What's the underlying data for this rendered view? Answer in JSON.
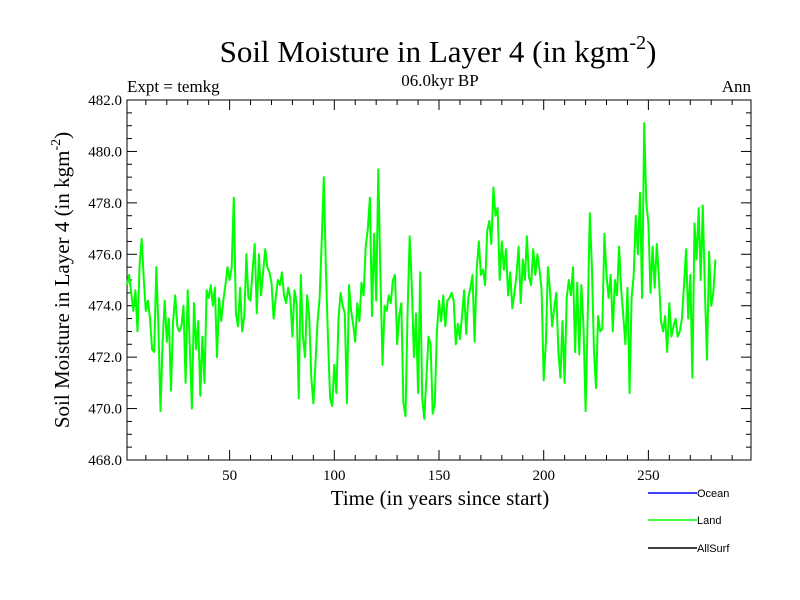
{
  "chart_data": {
    "type": "line",
    "title_main": "Soil Moisture in Layer 4 (in kgm",
    "title_sup": "-2",
    "title_end": ")",
    "subtitle_left": "Expt = temkg",
    "subtitle_center": "06.0kyr BP",
    "subtitle_right": "Ann",
    "xlabel": "Time (in years since start)",
    "ylabel_main": "Soil Moisture in Layer 4 (in kgm",
    "ylabel_sup": "-2",
    "ylabel_end": ")",
    "xlim": [
      1,
      299
    ],
    "ylim": [
      468,
      482
    ],
    "xticks": [
      50,
      100,
      150,
      200,
      250
    ],
    "xtick_labels": [
      "50",
      "100",
      "150",
      "200",
      "250"
    ],
    "yticks": [
      468,
      470,
      472,
      474,
      476,
      478,
      480,
      482
    ],
    "ytick_labels": [
      "468.0",
      "470.0",
      "472.0",
      "474.0",
      "476.0",
      "478.0",
      "480.0",
      "482.0"
    ],
    "legend": [
      {
        "name": "Ocean",
        "color": "#0000ff"
      },
      {
        "name": "Land",
        "color": "#00ff00"
      },
      {
        "name": "AllSurf",
        "color": "#000000"
      }
    ],
    "series": [
      {
        "name": "Land",
        "color": "#00ff00",
        "x_start": 1,
        "x_step": 1,
        "values": [
          474.8,
          475.2,
          474.5,
          473.8,
          474.6,
          473.0,
          475.6,
          476.6,
          475.0,
          473.8,
          474.2,
          473.5,
          472.3,
          472.2,
          475.5,
          473.2,
          469.9,
          472.6,
          474.2,
          472.6,
          473.5,
          470.7,
          473.4,
          474.4,
          473.2,
          473.0,
          473.2,
          474.0,
          471.0,
          474.6,
          472.4,
          470.0,
          474.1,
          472.3,
          473.4,
          470.5,
          472.8,
          471.0,
          474.6,
          474.3,
          474.8,
          474.0,
          474.7,
          472.0,
          474.3,
          473.4,
          474.2,
          474.8,
          475.5,
          475.0,
          475.5,
          478.2,
          473.7,
          473.2,
          474.7,
          473.0,
          473.6,
          476.0,
          474.3,
          474.2,
          475.4,
          476.4,
          473.7,
          476.0,
          474.4,
          475.3,
          476.2,
          475.5,
          475.3,
          474.9,
          473.5,
          474.3,
          475.0,
          474.8,
          475.3,
          474.4,
          474.1,
          474.7,
          474.3,
          472.8,
          474.6,
          474.1,
          470.4,
          475.2,
          472.8,
          472.0,
          474.4,
          473.6,
          471.2,
          470.2,
          471.8,
          473.4,
          474.3,
          476.5,
          479.0,
          475.4,
          472.7,
          470.4,
          470.1,
          471.7,
          470.6,
          473.5,
          474.5,
          474.0,
          473.7,
          470.2,
          474.8,
          473.8,
          473.3,
          472.6,
          474.1,
          473.4,
          474.9,
          474.4,
          476.3,
          477.0,
          478.2,
          473.6,
          476.8,
          474.2,
          479.3,
          475.2,
          471.7,
          474.0,
          473.8,
          474.4,
          474.1,
          475.0,
          475.2,
          472.5,
          473.6,
          474.1,
          470.2,
          469.7,
          473.8,
          476.7,
          474.8,
          472.0,
          473.7,
          470.6,
          475.3,
          470.4,
          469.6,
          471.2,
          472.8,
          472.5,
          469.8,
          470.2,
          473.0,
          474.2,
          473.4,
          474.4,
          473.2,
          474.2,
          474.3,
          474.5,
          474.2,
          472.5,
          473.3,
          472.7,
          473.6,
          474.6,
          472.9,
          474.3,
          474.7,
          475.2,
          472.6,
          475.4,
          476.5,
          475.2,
          475.4,
          474.8,
          476.9,
          477.3,
          476.4,
          478.6,
          477.5,
          477.8,
          475.0,
          476.5,
          475.4,
          476.2,
          474.4,
          475.3,
          473.9,
          474.5,
          475.2,
          476.3,
          474.1,
          475.8,
          475.0,
          476.7,
          475.1,
          474.8,
          476.2,
          475.2,
          476.0,
          475.4,
          474.6,
          471.1,
          472.5,
          475.5,
          474.6,
          473.2,
          473.9,
          474.5,
          472.2,
          471.2,
          473.4,
          471.0,
          474.3,
          475.0,
          474.4,
          475.5,
          472.2,
          474.9,
          472.1,
          474.8,
          473.2,
          469.9,
          473.6,
          477.6,
          475.5,
          472.2,
          470.8,
          473.6,
          473.0,
          473.1,
          476.8,
          475.2,
          474.3,
          475.2,
          473.0,
          475.0,
          474.4,
          476.3,
          474.6,
          473.6,
          472.5,
          474.7,
          470.6,
          474.3,
          475.2,
          477.5,
          476.0,
          478.4,
          474.3,
          481.1,
          478.0,
          477.2,
          474.5,
          476.3,
          474.7,
          476.4,
          475.1,
          473.4,
          473.0,
          473.6,
          472.2,
          474.1,
          472.8,
          473.2,
          473.5,
          472.8,
          473.0,
          473.5,
          474.8,
          476.2,
          473.5,
          475.2,
          471.2,
          477.2,
          475.8,
          477.8,
          475.0,
          477.9,
          474.6,
          471.9,
          476.1,
          474.0,
          474.5,
          475.8
        ]
      }
    ]
  }
}
